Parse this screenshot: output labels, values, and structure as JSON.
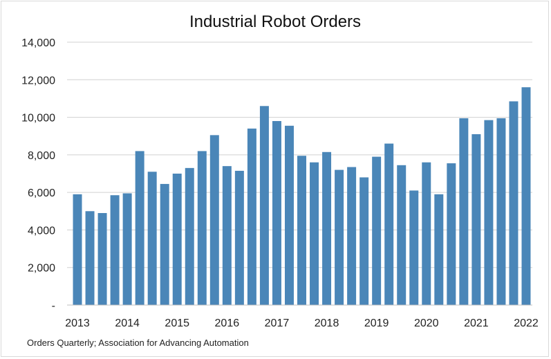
{
  "chart_data": {
    "type": "bar",
    "title": "Industrial Robot Orders",
    "source_note": "Orders Quarterly; Association for Advancing Automation",
    "ylim": [
      0,
      14000
    ],
    "yticks": [
      0,
      2000,
      4000,
      6000,
      8000,
      10000,
      12000,
      14000
    ],
    "ytick_labels": [
      "-",
      "2,000",
      "4,000",
      "6,000",
      "8,000",
      "10,000",
      "12,000",
      "14,000"
    ],
    "xtick_labels": [
      "2013",
      "2014",
      "2015",
      "2016",
      "2017",
      "2018",
      "2019",
      "2020",
      "2021",
      "2022"
    ],
    "grid": true,
    "legend": "none",
    "bar_color": "#4a86b8",
    "categories": [
      "2013 Q1",
      "2013 Q2",
      "2013 Q3",
      "2013 Q4",
      "2014 Q1",
      "2014 Q2",
      "2014 Q3",
      "2014 Q4",
      "2015 Q1",
      "2015 Q2",
      "2015 Q3",
      "2015 Q4",
      "2016 Q1",
      "2016 Q2",
      "2016 Q3",
      "2016 Q4",
      "2017 Q1",
      "2017 Q2",
      "2017 Q3",
      "2017 Q4",
      "2018 Q1",
      "2018 Q2",
      "2018 Q3",
      "2018 Q4",
      "2019 Q1",
      "2019 Q2",
      "2019 Q3",
      "2019 Q4",
      "2020 Q1",
      "2020 Q2",
      "2020 Q3",
      "2020 Q4",
      "2021 Q1",
      "2021 Q2",
      "2021 Q3",
      "2021 Q4",
      "2022 Q1"
    ],
    "values": [
      5900,
      5000,
      4900,
      5850,
      5950,
      8200,
      7100,
      6450,
      7000,
      7300,
      8200,
      9050,
      7400,
      7150,
      9400,
      10600,
      9800,
      9550,
      7950,
      7600,
      8150,
      7200,
      7350,
      6800,
      7900,
      8600,
      7450,
      6100,
      7600,
      5900,
      7550,
      9950,
      9100,
      9850,
      9950,
      10850,
      11600
    ]
  }
}
